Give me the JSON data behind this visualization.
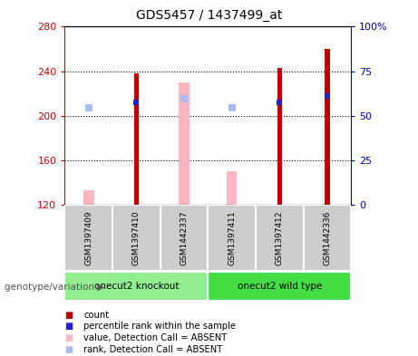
{
  "title": "GDS5457 / 1437499_at",
  "samples": [
    "GSM1397409",
    "GSM1397410",
    "GSM1442337",
    "GSM1397411",
    "GSM1397412",
    "GSM1442336"
  ],
  "groups": [
    {
      "label": "onecut2 knockout",
      "samples": [
        0,
        1,
        2
      ],
      "color": "#90EE90"
    },
    {
      "label": "onecut2 wild type",
      "samples": [
        3,
        4,
        5
      ],
      "color": "#44DD44"
    }
  ],
  "ylim_left": [
    120,
    280
  ],
  "ylim_right": [
    0,
    100
  ],
  "yticks_left": [
    120,
    160,
    200,
    240,
    280
  ],
  "yticks_right": [
    0,
    25,
    50,
    75,
    100
  ],
  "ytick_labels_right": [
    "0",
    "25",
    "50",
    "75",
    "100%"
  ],
  "count_values": [
    null,
    238,
    null,
    null,
    243,
    260
  ],
  "percentile_values": [
    null,
    212,
    null,
    null,
    212,
    218
  ],
  "absent_value_values": [
    133,
    null,
    230,
    150,
    null,
    null
  ],
  "absent_rank_values": [
    207,
    null,
    215,
    207,
    null,
    null
  ],
  "bar_bottom": 120,
  "count_color": "#BB0000",
  "percentile_color": "#2222CC",
  "absent_value_color": "#FFB6C1",
  "absent_rank_color": "#AABBEE",
  "grid_color": "#000000",
  "left_tick_color": "#CC0000",
  "right_tick_color": "#0000BB",
  "background_sample": "#CCCCCC",
  "legend_items": [
    {
      "color": "#BB0000",
      "label": "count"
    },
    {
      "color": "#2222CC",
      "label": "percentile rank within the sample"
    },
    {
      "color": "#FFB6C1",
      "label": "value, Detection Call = ABSENT"
    },
    {
      "color": "#AABBEE",
      "label": "rank, Detection Call = ABSENT"
    }
  ],
  "genotype_label": "genotype/variation"
}
